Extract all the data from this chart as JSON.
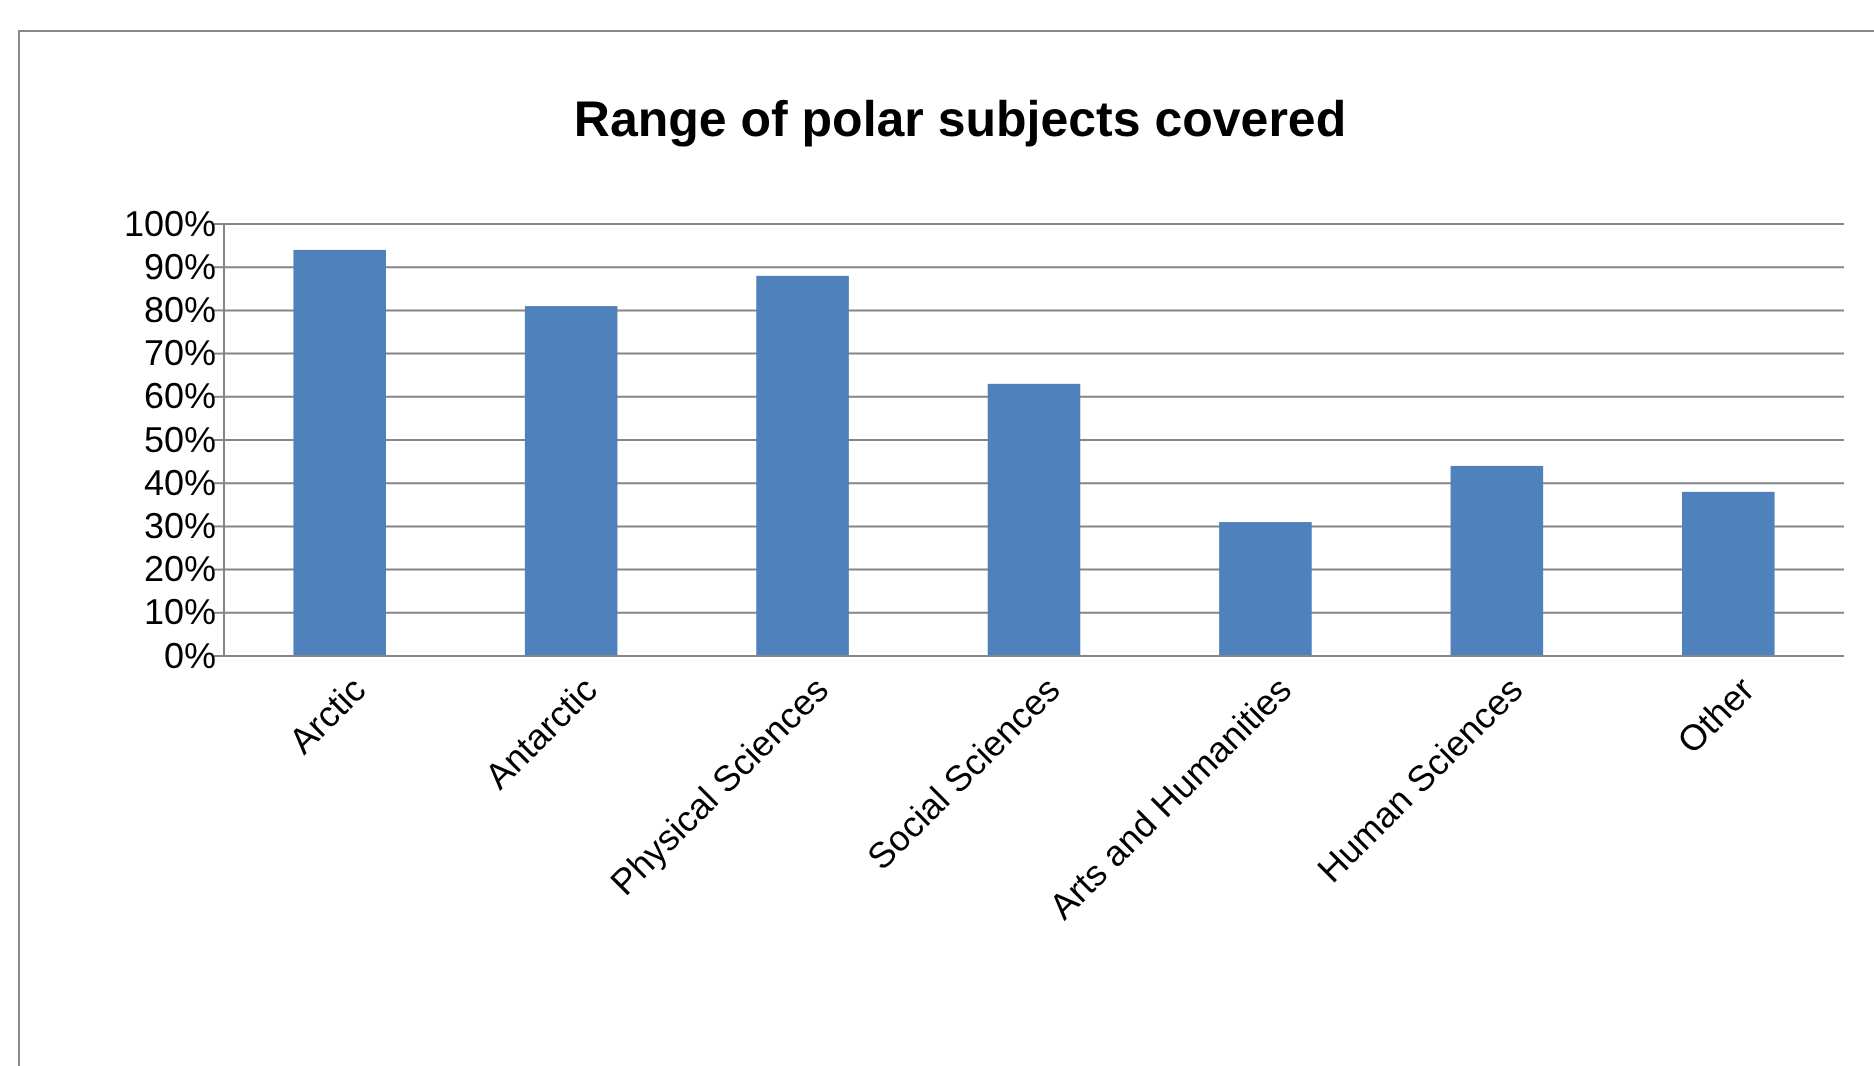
{
  "chart_data": {
    "type": "bar",
    "title": "Range of polar subjects covered",
    "categories": [
      "Arctic",
      "Antarctic",
      "Physical Sciences",
      "Social Sciences",
      "Arts and Humanities",
      "Human Sciences",
      "Other"
    ],
    "values": [
      94,
      81,
      88,
      63,
      31,
      44,
      38
    ],
    "color": "#4f81bd",
    "ylim": [
      0,
      100
    ],
    "yticks": [
      {
        "value": 0,
        "label": "0%"
      },
      {
        "value": 10,
        "label": "10%"
      },
      {
        "value": 20,
        "label": "20%"
      },
      {
        "value": 30,
        "label": "30%"
      },
      {
        "value": 40,
        "label": "40%"
      },
      {
        "value": 50,
        "label": "50%"
      },
      {
        "value": 60,
        "label": "60%"
      },
      {
        "value": 70,
        "label": "70%"
      },
      {
        "value": 80,
        "label": "80%"
      },
      {
        "value": 90,
        "label": "90%"
      },
      {
        "value": 100,
        "label": "100%"
      }
    ],
    "grid": "y"
  }
}
